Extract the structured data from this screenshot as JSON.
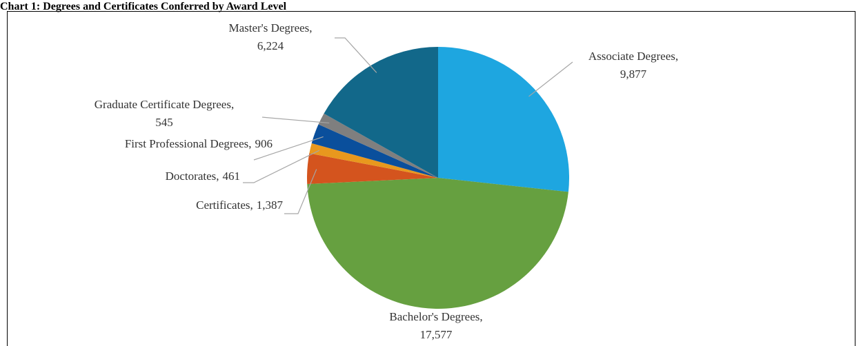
{
  "chart_data": {
    "type": "pie",
    "title": "Chart 1: Degrees and Certificates Conferred by Award Level",
    "categories": [
      "Associate Degrees,",
      "Bachelor's Degrees,",
      "Certificates,",
      "Doctorates,",
      "First Professional Degrees,",
      "Graduate Certificate Degrees,",
      "Master's Degrees,"
    ],
    "values": [
      9877,
      17577,
      1387,
      461,
      906,
      545,
      6224
    ],
    "value_labels": [
      "9,877",
      "17,577",
      "1,387",
      "461",
      "906",
      "545",
      "6,224"
    ],
    "colors": [
      "#1ea6e0",
      "#66a040",
      "#d4541e",
      "#e8981e",
      "#0a4f9c",
      "#7f7f7f",
      "#12688a"
    ]
  }
}
